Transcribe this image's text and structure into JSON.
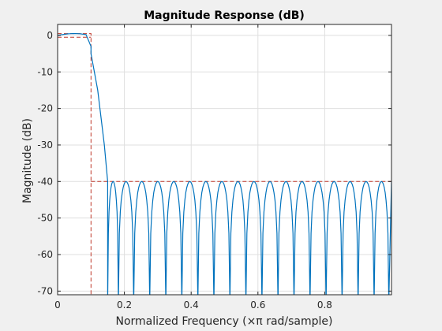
{
  "chart_data": {
    "type": "line",
    "title": "Magnitude Response (dB)",
    "xlabel": "Normalized Frequency (×π rad/sample)",
    "ylabel": "Magnitude (dB)",
    "xlim": [
      0,
      1
    ],
    "ylim": [
      -71,
      3
    ],
    "xticks": [
      0,
      0.2,
      0.4,
      0.6,
      0.8
    ],
    "xticklabels": [
      "0",
      "0.2",
      "0.4",
      "0.6",
      "0.8"
    ],
    "yticks": [
      0,
      -10,
      -20,
      -30,
      -40,
      -50,
      -60,
      -70
    ],
    "yticklabels": [
      "0",
      "-10",
      "-20",
      "-30",
      "-40",
      "-50",
      "-60",
      "-70"
    ],
    "grid": true,
    "series": [
      {
        "style": "solid",
        "color": "#0072bd",
        "description": "filter magnitude response",
        "passband_edge": 0.1,
        "passband_ripple_db": 0.5,
        "transition": [
          [
            0.1,
            -5
          ],
          [
            0.12,
            -15
          ],
          [
            0.14,
            -30
          ],
          [
            0.15,
            -40
          ]
        ],
        "stopband_level_db": -40,
        "stopband_nulls": [
          0.15,
          0.182,
          0.228,
          0.276,
          0.324,
          0.372,
          0.42,
          0.468,
          0.516,
          0.564,
          0.612,
          0.66,
          0.708,
          0.756,
          0.804,
          0.852,
          0.9,
          0.948,
          0.992
        ]
      },
      {
        "style": "dashed",
        "color": "#c0392b",
        "description": "specification mask",
        "points": [
          [
            0,
            0.5
          ],
          [
            0.1,
            0.5
          ],
          [
            0.1,
            -71
          ]
        ],
        "stopband_points": [
          [
            0.1,
            -40
          ],
          [
            1,
            -40
          ]
        ],
        "passband_lower": [
          [
            0,
            -0.5
          ],
          [
            0.1,
            -0.5
          ]
        ]
      }
    ]
  }
}
